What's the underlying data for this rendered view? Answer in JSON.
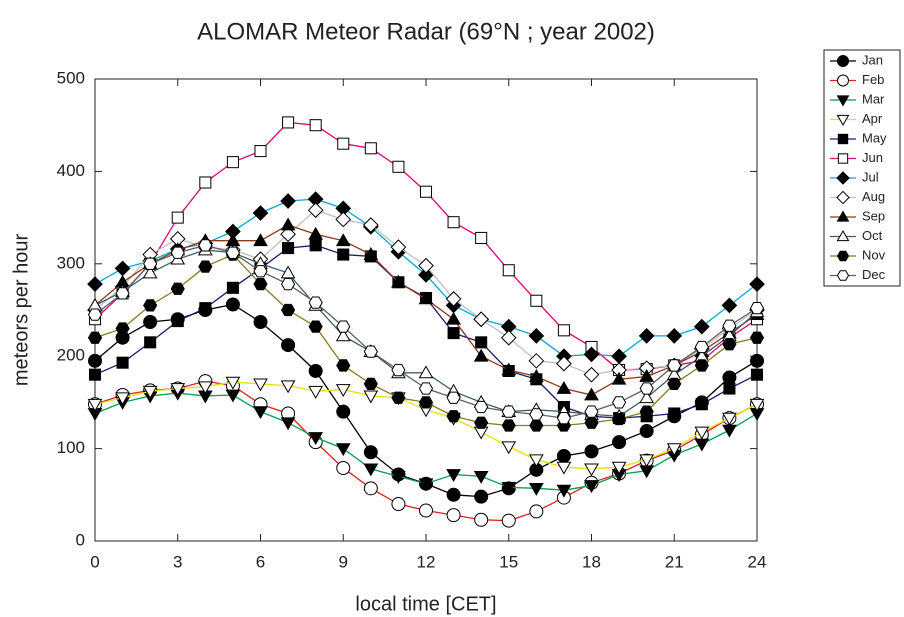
{
  "chart_data": {
    "type": "line",
    "title": "ALOMAR Meteor Radar (69°N ; year 2002)",
    "x_label": "local time [CET]",
    "y_label": "meteors per hour",
    "xlim": [
      0,
      24
    ],
    "ylim": [
      0,
      500
    ],
    "xticks": [
      0,
      3,
      6,
      9,
      12,
      15,
      18,
      21,
      24
    ],
    "yticks": [
      0,
      100,
      200,
      300,
      400,
      500
    ],
    "x": [
      0,
      1,
      2,
      3,
      4,
      5,
      6,
      7,
      8,
      9,
      10,
      11,
      12,
      13,
      14,
      15,
      16,
      17,
      18,
      19,
      20,
      21,
      22,
      23,
      24
    ],
    "series": [
      {
        "name": "Jan",
        "color": "#000000",
        "marker": "circle",
        "filled": true,
        "values": [
          195,
          220,
          237,
          240,
          250,
          256,
          237,
          212,
          184,
          140,
          96,
          72,
          62,
          50,
          48,
          57,
          77,
          92,
          97,
          107,
          119,
          135,
          150,
          177,
          195
        ]
      },
      {
        "name": "Feb",
        "color": "#e02020",
        "marker": "circle",
        "filled": false,
        "values": [
          148,
          158,
          163,
          165,
          173,
          168,
          148,
          138,
          107,
          79,
          57,
          40,
          33,
          28,
          23,
          22,
          32,
          47,
          63,
          73,
          87,
          98,
          115,
          133,
          148
        ]
      },
      {
        "name": "Mar",
        "color": "#00a050",
        "marker": "triangle-down",
        "filled": true,
        "values": [
          138,
          150,
          157,
          160,
          157,
          158,
          140,
          128,
          112,
          100,
          78,
          70,
          62,
          72,
          70,
          58,
          57,
          55,
          60,
          72,
          76,
          93,
          105,
          120,
          138
        ]
      },
      {
        "name": "Apr",
        "color": "#e8e000",
        "marker": "triangle-down",
        "filled": false,
        "values": [
          148,
          155,
          162,
          165,
          167,
          172,
          170,
          168,
          162,
          164,
          157,
          155,
          142,
          133,
          118,
          102,
          88,
          80,
          78,
          80,
          88,
          100,
          118,
          133,
          148
        ]
      },
      {
        "name": "May",
        "color": "#1a1a6e",
        "marker": "square",
        "filled": true,
        "values": [
          180,
          193,
          215,
          238,
          252,
          274,
          295,
          317,
          320,
          310,
          308,
          280,
          263,
          225,
          215,
          184,
          175,
          145,
          135,
          133,
          135,
          138,
          148,
          165,
          180
        ]
      },
      {
        "name": "Jun",
        "color": "#e0007a",
        "marker": "square",
        "filled": false,
        "values": [
          240,
          268,
          300,
          350,
          388,
          410,
          422,
          453,
          450,
          430,
          425,
          405,
          378,
          345,
          328,
          293,
          260,
          228,
          210,
          185,
          186,
          190,
          195,
          220,
          240
        ]
      },
      {
        "name": "Jul",
        "color": "#00a8d8",
        "marker": "diamond",
        "filled": true,
        "values": [
          278,
          295,
          303,
          316,
          322,
          335,
          355,
          368,
          370,
          360,
          340,
          313,
          288,
          255,
          240,
          232,
          222,
          200,
          202,
          200,
          222,
          222,
          232,
          255,
          278
        ]
      },
      {
        "name": "Aug",
        "color": "#c0c0c0",
        "marker": "diamond",
        "filled": false,
        "values": [
          250,
          275,
          310,
          327,
          318,
          315,
          305,
          332,
          358,
          348,
          342,
          318,
          298,
          262,
          240,
          220,
          195,
          192,
          180,
          185,
          187,
          190,
          208,
          230,
          250
        ]
      },
      {
        "name": "Sep",
        "color": "#8b3a1a",
        "marker": "triangle-up",
        "filled": true,
        "values": [
          255,
          280,
          300,
          315,
          325,
          325,
          325,
          342,
          332,
          325,
          310,
          280,
          262,
          240,
          200,
          185,
          178,
          165,
          158,
          175,
          178,
          190,
          205,
          225,
          245
        ]
      },
      {
        "name": "Oct",
        "color": "#406060",
        "marker": "triangle-up",
        "filled": false,
        "values": [
          255,
          270,
          290,
          305,
          315,
          312,
          300,
          290,
          255,
          222,
          205,
          182,
          182,
          162,
          150,
          140,
          142,
          140,
          137,
          135,
          155,
          180,
          200,
          222,
          248
        ]
      },
      {
        "name": "Nov",
        "color": "#8b7a20",
        "marker": "hexagon",
        "filled": true,
        "values": [
          220,
          230,
          255,
          273,
          297,
          310,
          278,
          250,
          232,
          190,
          170,
          155,
          150,
          135,
          128,
          125,
          125,
          125,
          128,
          132,
          140,
          170,
          190,
          213,
          220
        ]
      },
      {
        "name": "Dec",
        "color": "#606060",
        "marker": "hexagon",
        "filled": false,
        "values": [
          245,
          268,
          300,
          312,
          320,
          312,
          292,
          278,
          258,
          232,
          205,
          185,
          165,
          155,
          145,
          140,
          137,
          133,
          140,
          150,
          165,
          190,
          210,
          233,
          252
        ]
      }
    ]
  }
}
